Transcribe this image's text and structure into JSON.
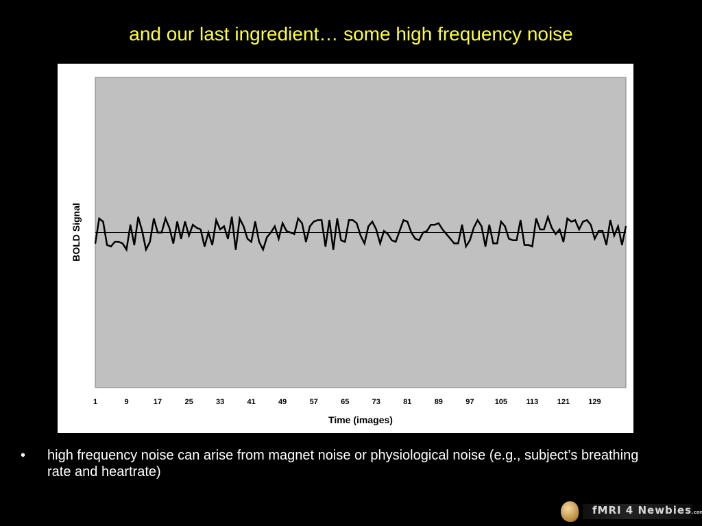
{
  "slide": {
    "title": "and our last ingredient… some high frequency noise",
    "bullet_marker": "•",
    "bullet_text": "high frequency noise can arise from magnet noise or physiological noise (e.g., subject’s breathing rate and heartrate)",
    "logo_text": "fMRI 4 Newbies",
    "logo_suffix": ".com",
    "colors": {
      "background": "#000000",
      "title": "#ffff33",
      "bullet_text": "#ffffff",
      "plot_area": "#c0c0c0",
      "line": "#000000"
    }
  },
  "chart_data": {
    "type": "line",
    "title": "",
    "xlabel": "Time (images)",
    "ylabel": "BOLD Signal",
    "x_tick_labels": [
      "1",
      "9",
      "17",
      "25",
      "33",
      "41",
      "49",
      "57",
      "65",
      "73",
      "81",
      "89",
      "97",
      "105",
      "113",
      "121",
      "129"
    ],
    "x_range": [
      1,
      137
    ],
    "y_range": [
      -1,
      1
    ],
    "baseline": 0,
    "grid": false,
    "legend": "none",
    "series": [
      {
        "values": [
          -0.07,
          0.09,
          0.07,
          -0.08,
          -0.09,
          -0.06,
          -0.06,
          -0.07,
          -0.11,
          0.05,
          -0.08,
          0.1,
          0.01,
          -0.11,
          -0.06,
          0.09,
          0.0,
          0.0,
          0.09,
          0.03,
          -0.07,
          0.07,
          -0.04,
          0.07,
          -0.02,
          0.05,
          0.03,
          0.02,
          -0.09,
          0.0,
          -0.08,
          0.08,
          0.02,
          0.04,
          -0.04,
          0.1,
          -0.11,
          0.09,
          0.04,
          -0.04,
          -0.06,
          0.07,
          -0.06,
          -0.11,
          -0.03,
          0.0,
          0.04,
          -0.04,
          0.06,
          0.01,
          0.0,
          -0.01,
          0.09,
          0.06,
          -0.06,
          0.04,
          0.07,
          0.08,
          0.08,
          -0.09,
          0.08,
          -0.11,
          0.09,
          -0.05,
          -0.06,
          0.08,
          0.08,
          0.06,
          -0.02,
          -0.07,
          0.04,
          0.07,
          0.02,
          -0.07,
          0.01,
          -0.01,
          -0.05,
          -0.06,
          0.01,
          0.08,
          0.07,
          0.0,
          -0.04,
          -0.05,
          0.0,
          0.01,
          0.05,
          0.05,
          0.06,
          0.02,
          -0.01,
          -0.04,
          -0.07,
          -0.07,
          0.05,
          -0.09,
          -0.05,
          0.03,
          0.08,
          0.04,
          -0.09,
          0.05,
          -0.07,
          -0.07,
          0.07,
          0.04,
          -0.04,
          -0.05,
          -0.05,
          0.08,
          -0.08,
          -0.08,
          -0.09,
          0.09,
          0.02,
          0.02,
          0.1,
          0.03,
          -0.01,
          0.02,
          -0.06,
          0.09,
          0.07,
          0.08,
          0.02,
          0.07,
          0.08,
          0.05,
          -0.04,
          0.01,
          0.01,
          -0.08,
          0.08,
          -0.02,
          0.04,
          -0.08,
          0.04
        ]
      }
    ]
  }
}
